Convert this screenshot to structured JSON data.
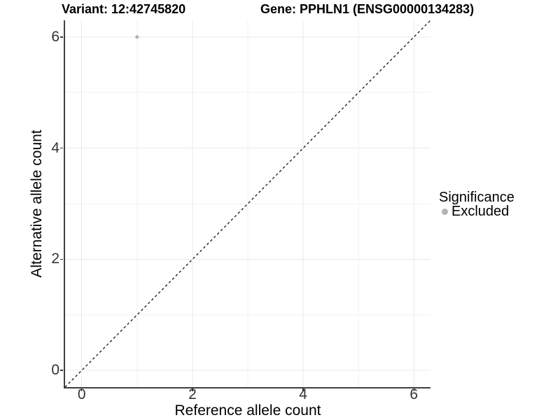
{
  "titles": {
    "variant": "Variant: 12:42745820",
    "gene": "Gene: PPHLN1 (ENSG00000134283)"
  },
  "axes": {
    "x": {
      "label": "Reference allele count",
      "ticks": [
        {
          "value": 0,
          "label": "0"
        },
        {
          "value": 2,
          "label": "2"
        },
        {
          "value": 4,
          "label": "4"
        },
        {
          "value": 6,
          "label": "6"
        }
      ]
    },
    "y": {
      "label": "Alternative allele count",
      "ticks": [
        {
          "value": 0,
          "label": "0"
        },
        {
          "value": 2,
          "label": "2"
        },
        {
          "value": 4,
          "label": "4"
        },
        {
          "value": 6,
          "label": "6"
        }
      ]
    }
  },
  "legend": {
    "title": "Significance",
    "items": [
      {
        "label": "Excluded",
        "color": "#b3b3b3",
        "marker": "circle"
      }
    ]
  },
  "chart_data": {
    "type": "scatter",
    "title": "Variant: 12:42745820",
    "secondary_title": "Gene: PPHLN1 (ENSG00000134283)",
    "xlabel": "Reference allele count",
    "ylabel": "Alternative allele count",
    "xlim": [
      -0.3,
      6.3
    ],
    "ylim": [
      -0.3,
      6.3
    ],
    "x_major_ticks": [
      0,
      2,
      4,
      6
    ],
    "y_major_ticks": [
      0,
      2,
      4,
      6
    ],
    "x_minor_gridlines": [
      1,
      3,
      5
    ],
    "y_minor_gridlines": [
      1,
      3,
      5
    ],
    "grid": "major and minor gridlines on white background",
    "legend_position": "right",
    "series": [
      {
        "name": "Excluded",
        "color": "#b3b3b3",
        "marker": "circle",
        "points": [
          {
            "x": 1,
            "y": 6
          }
        ]
      }
    ],
    "reference_line": {
      "kind": "identity y=x",
      "style": "dashed",
      "color": "#000000",
      "from": [
        -0.3,
        -0.3
      ],
      "to": [
        6.3,
        6.3
      ]
    }
  },
  "colors": {
    "background": "#ffffff",
    "grid_major": "#e8e8e8",
    "grid_minor": "#f2f2f2",
    "axis_line": "#404040",
    "tick_mark": "#333333",
    "tick_label": "#333333",
    "text": "#000000",
    "point": "#b3b3b3",
    "reference_line": "#000000"
  }
}
